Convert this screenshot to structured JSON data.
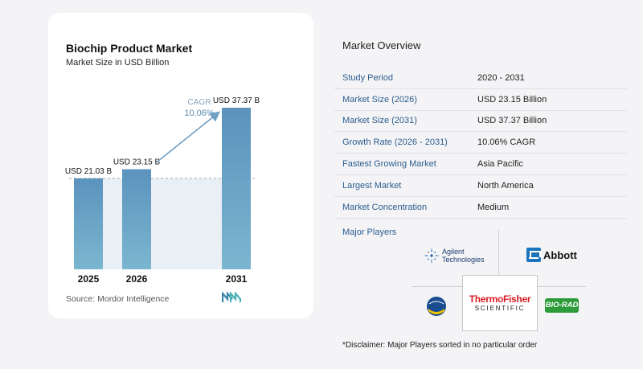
{
  "chart": {
    "title": "Biochip Product Market",
    "subtitle": "Market Size in USD Billion",
    "source": "Source:  Mordor Intelligence"
  },
  "chart_data": {
    "type": "bar",
    "categories": [
      "2025",
      "2026",
      "2031"
    ],
    "values": [
      21.03,
      23.15,
      37.37
    ],
    "data_labels": [
      "USD 21.03 B",
      "USD 23.15 B",
      "USD 37.37 B"
    ],
    "annotation": {
      "label": "CAGR",
      "value": "10.06%"
    },
    "title": "Biochip Product Market",
    "subtitle": "Market Size in USD Billion",
    "grid": false,
    "bar_color": "#5b93bd"
  },
  "overview": {
    "title": "Market Overview",
    "rows": [
      {
        "label": "Study Period",
        "value": "2020 - 2031"
      },
      {
        "label": "Market Size (2026)",
        "value": "USD 23.15 Billion"
      },
      {
        "label": "Market Size (2031)",
        "value": "USD 37.37 Billion"
      },
      {
        "label": "Growth Rate (2026 - 2031)",
        "value": "10.06% CAGR"
      },
      {
        "label": "Fastest Growing Market",
        "value": "Asia Pacific"
      },
      {
        "label": "Largest Market",
        "value": "North America"
      },
      {
        "label": "Market Concentration",
        "value": "Medium"
      }
    ]
  },
  "players": {
    "title": "Major Players",
    "logos": [
      "Agilent Technologies",
      "Abbott",
      "Eurofins",
      "Thermo Fisher Scientific",
      "Bio-Rad"
    ],
    "agilent_line1": "Agilent",
    "agilent_line2": "Technologies",
    "abbott_text": "Abbott",
    "tf_top": "ThermoFisher",
    "tf_bottom": "SCIENTIFIC",
    "biorad_text": "BIO-RAD"
  },
  "disclaimer": "*Disclaimer: Major Players sorted in no particular order",
  "colors": {
    "accent_blue": "#2c5d8f",
    "bar_top": "#5b93bd",
    "bar_bottom": "#7bb6d0",
    "thermo_red": "#d71d24",
    "biorad_green": "#2d9b3a"
  }
}
